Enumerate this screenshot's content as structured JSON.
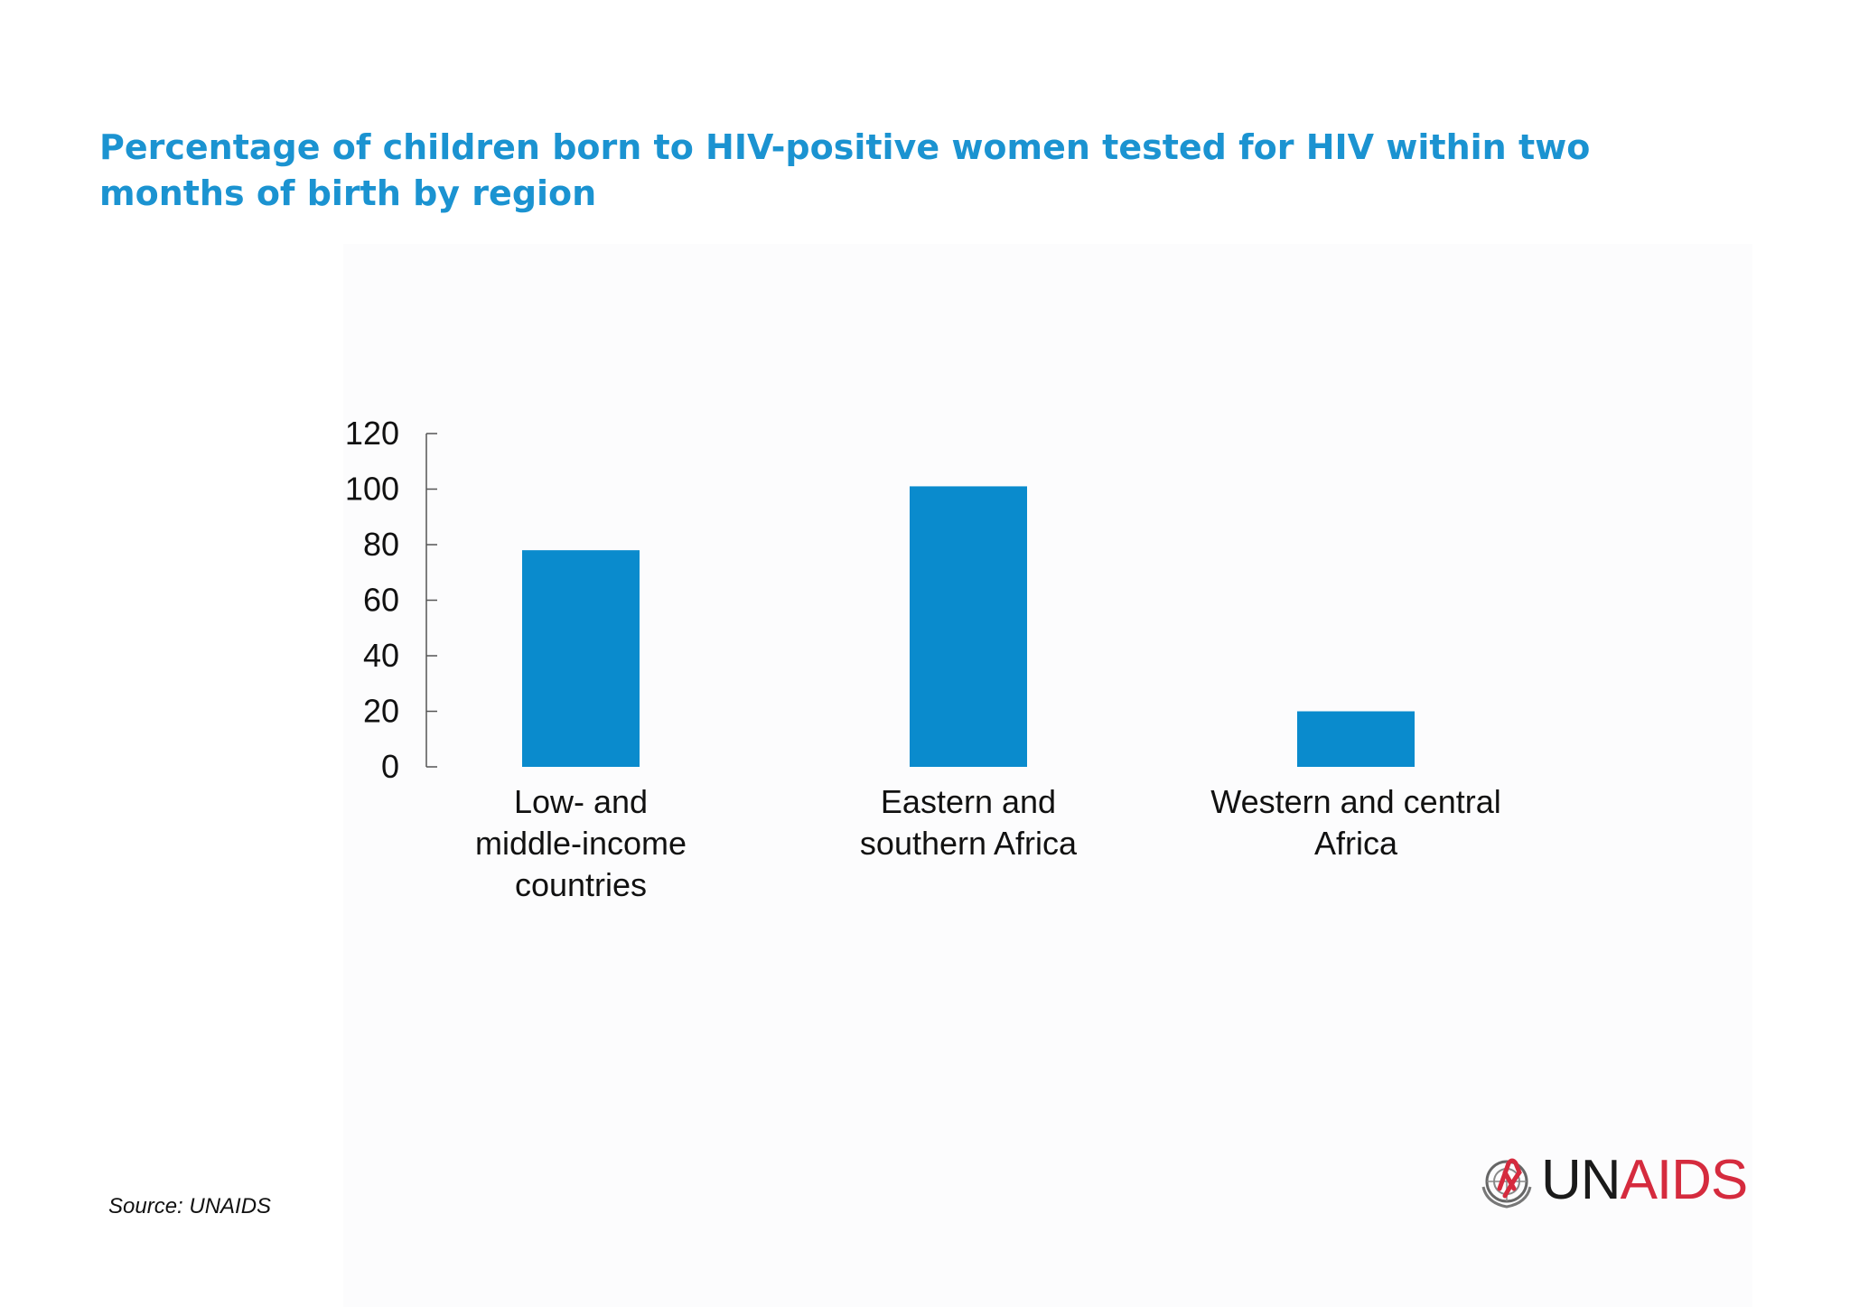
{
  "title": "Percentage of children born to HIV-positive women tested for HIV within two months of birth by region",
  "source": "Source: UNAIDS",
  "logo": {
    "part1": "UN",
    "part2": "AIDS",
    "emblem_icon": "un-emblem-red-ribbon-icon"
  },
  "colors": {
    "title": "#1b93d1",
    "bar": "#0a8bcd",
    "axis": "#555555",
    "logo_red": "#d52b3e"
  },
  "chart_data": {
    "type": "bar",
    "title": "Percentage of children born to HIV-positive women tested for HIV within two months of birth by region",
    "categories": [
      [
        "Low- and",
        "middle-income",
        "countries"
      ],
      [
        "Eastern and",
        "southern Africa"
      ],
      [
        "Western and central",
        "Africa"
      ]
    ],
    "values": [
      78,
      101,
      20
    ],
    "ylim": [
      0,
      120
    ],
    "yticks": [
      0,
      20,
      40,
      60,
      80,
      100,
      120
    ],
    "xlabel": "",
    "ylabel": "",
    "grid": false,
    "legend": "none"
  }
}
